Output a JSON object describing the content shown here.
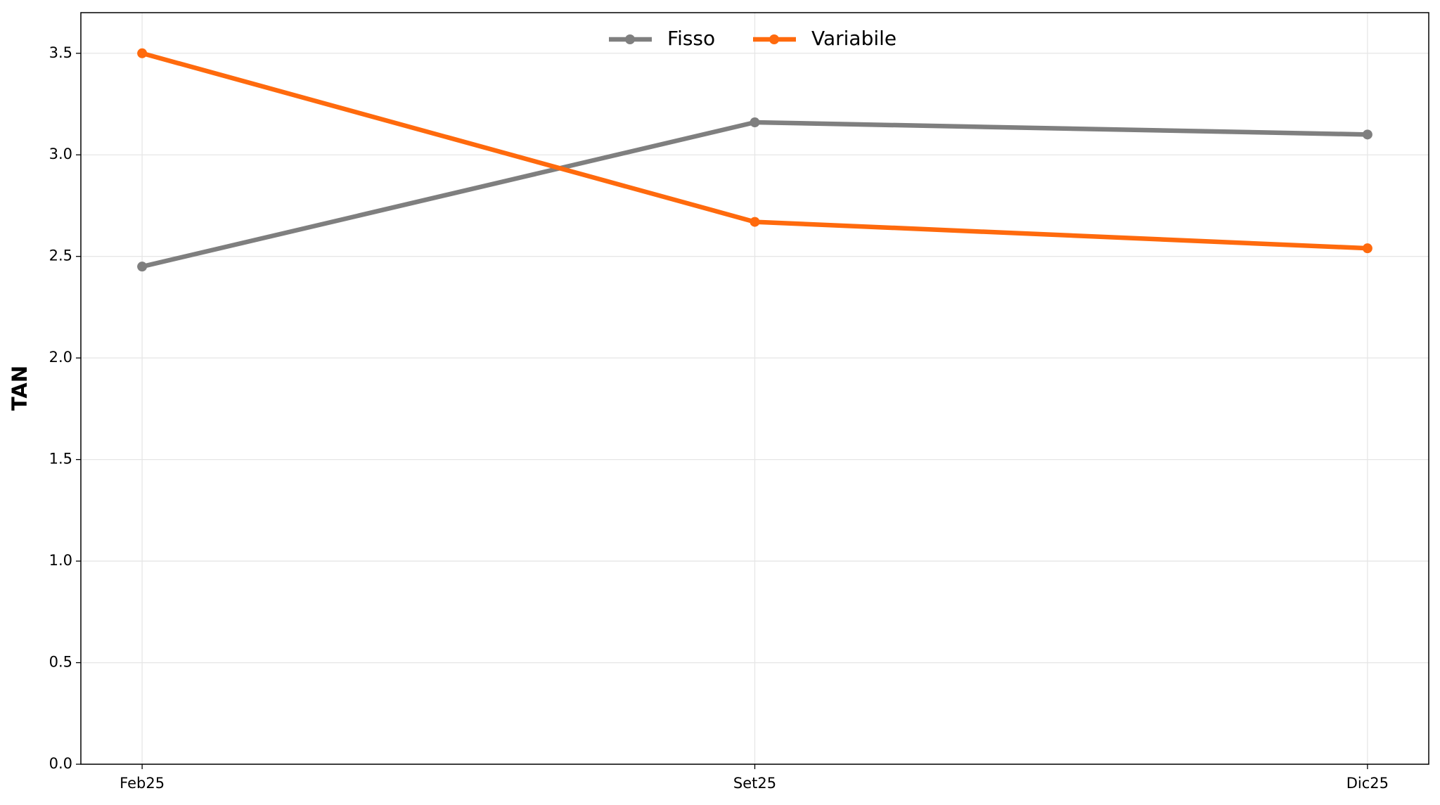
{
  "chart_data": {
    "type": "line",
    "ylabel": "TAN",
    "categories": [
      "Feb25",
      "Set25",
      "Dic25"
    ],
    "series": [
      {
        "name": "Fisso",
        "color": "#7f7f7f",
        "values": [
          2.45,
          3.16,
          3.1
        ]
      },
      {
        "name": "Variabile",
        "color": "#ff6a0d",
        "values": [
          3.5,
          2.67,
          2.54
        ]
      }
    ],
    "ylim": [
      0,
      3.7
    ],
    "yticks": [
      {
        "value": 0,
        "label": "0.0"
      },
      0.5,
      {
        "value": 1,
        "label": "1.0"
      },
      1.5,
      {
        "value": 2,
        "label": "2.0"
      },
      2.5,
      {
        "value": 3,
        "label": "3.0"
      },
      3.5
    ],
    "grid": true,
    "legend": "upper center"
  }
}
